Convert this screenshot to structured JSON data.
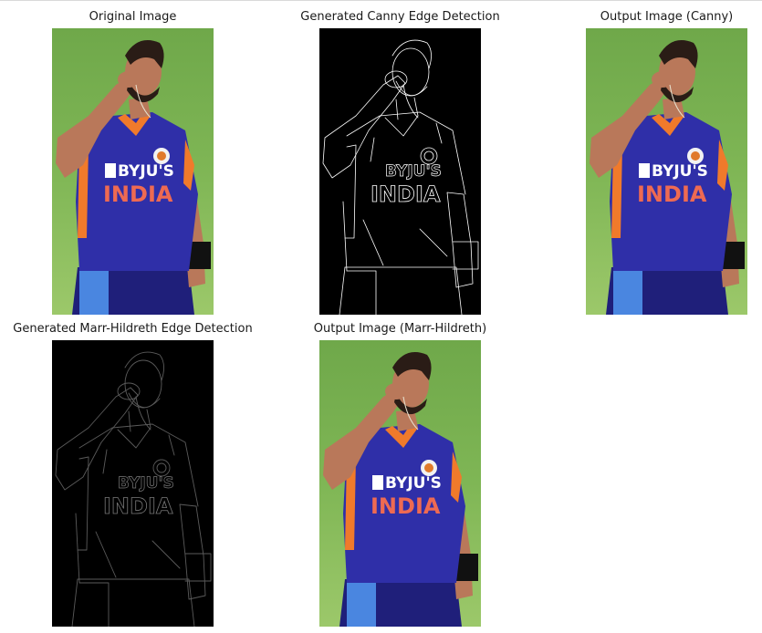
{
  "figure": {
    "panels": [
      {
        "id": "original",
        "title": "Original Image",
        "kind": "photo"
      },
      {
        "id": "canny-edges",
        "title": "Generated Canny Edge Detection",
        "kind": "edges"
      },
      {
        "id": "canny-output",
        "title": "Output Image (Canny)",
        "kind": "photo"
      },
      {
        "id": "marr-edges",
        "title": "Generated Marr-Hildreth Edge Detection",
        "kind": "edges-faint"
      },
      {
        "id": "marr-output",
        "title": "Output Image (Marr-Hildreth)",
        "kind": "photo"
      }
    ],
    "jersey_text": {
      "sponsor": "BYJU'S",
      "country": "INDIA"
    },
    "colors": {
      "grass_light": "#8cbf5a",
      "grass_dark": "#4f8f35",
      "jersey_blue": "#2f2fa8",
      "jersey_blue_dark": "#1f1f7a",
      "jersey_orange": "#f07a2b",
      "shorts_blue": "#3b6fd1",
      "skin": "#b9785a",
      "hair": "#2a1c16",
      "edge_bg": "#000000",
      "edge_line": "#ffffff"
    }
  }
}
